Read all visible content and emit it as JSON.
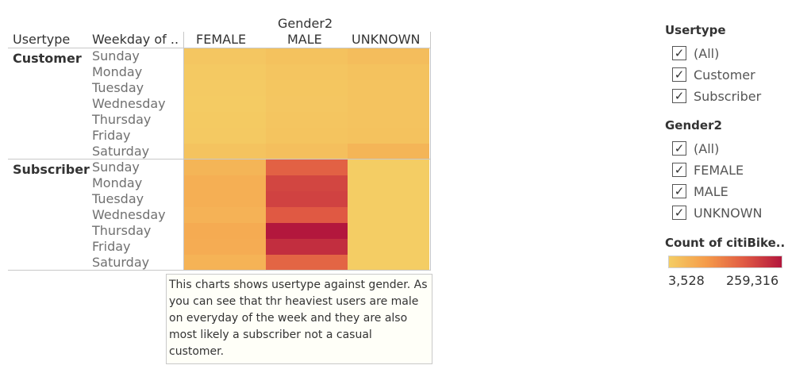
{
  "chart_data": {
    "type": "heatmap",
    "column_group_title": "Gender2",
    "row_header": "Usertype",
    "row_subheader": "Weekday of ..",
    "columns": [
      "FEMALE",
      "MALE",
      "UNKNOWN"
    ],
    "row_groups": [
      {
        "label": "Customer",
        "days": [
          "Sunday",
          "Monday",
          "Tuesday",
          "Wednesday",
          "Thursday",
          "Friday",
          "Saturday"
        ],
        "values": [
          [
            15000,
            22000,
            30000
          ],
          [
            10000,
            18000,
            22000
          ],
          [
            8000,
            16000,
            20000
          ],
          [
            7000,
            15000,
            20000
          ],
          [
            9000,
            17000,
            21000
          ],
          [
            11000,
            19000,
            23000
          ],
          [
            20000,
            28000,
            45000
          ]
        ]
      },
      {
        "label": "Subscriber",
        "days": [
          "Sunday",
          "Monday",
          "Tuesday",
          "Wednesday",
          "Thursday",
          "Friday",
          "Saturday"
        ],
        "values": [
          [
            45000,
            165000,
            3528
          ],
          [
            55000,
            200000,
            3528
          ],
          [
            55000,
            205000,
            3528
          ],
          [
            50000,
            175000,
            3528
          ],
          [
            62000,
            259316,
            3528
          ],
          [
            60000,
            230000,
            3528
          ],
          [
            48000,
            160000,
            3528
          ]
        ]
      }
    ],
    "color_legend": {
      "title": "Count of citiBike..",
      "min": 3528,
      "max": 259316,
      "min_label": "3,528",
      "max_label": "259,316"
    },
    "color_scale": [
      "#f4cd64",
      "#f59b4a",
      "#e05a43",
      "#b3173d"
    ]
  },
  "annotation": "This charts shows usertype against gender. As you can see that thr heaviest users are male on everyday of the week and they are also most likely a subscriber not a casual customer.",
  "filters": [
    {
      "title": "Usertype",
      "items": [
        {
          "label": "(All)",
          "checked": true
        },
        {
          "label": "Customer",
          "checked": true
        },
        {
          "label": "Subscriber",
          "checked": true
        }
      ]
    },
    {
      "title": "Gender2",
      "items": [
        {
          "label": "(All)",
          "checked": true
        },
        {
          "label": "FEMALE",
          "checked": true
        },
        {
          "label": "MALE",
          "checked": true
        },
        {
          "label": "UNKNOWN",
          "checked": true
        }
      ]
    }
  ],
  "check_glyph": "✓"
}
